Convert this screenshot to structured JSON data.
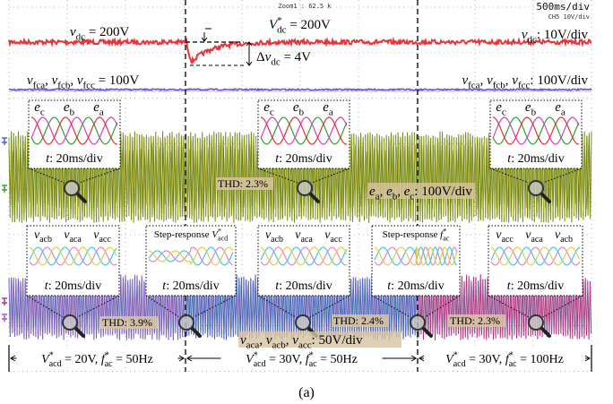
{
  "scope": {
    "zoom": "Zoom1 : 62.5 k",
    "timebase": "500ms/div",
    "channel": "CH5  10V/div"
  },
  "annotations": {
    "vdc": [
      {
        "v": "v",
        "sub": "dc"
      },
      {
        "t": " = 200V"
      }
    ],
    "vdc_ref": [
      {
        "v": "V",
        "sup": "*",
        "sub": "dc"
      },
      {
        "t": " = 200V"
      }
    ],
    "delta_vdc": [
      {
        "t": "Δ"
      },
      {
        "v": "v",
        "sub": "dc"
      },
      {
        "t": " = 4V"
      }
    ],
    "vdc_scale": [
      {
        "v": "v",
        "sub": "dc"
      },
      {
        "t": ": 10V/div"
      }
    ],
    "vfc": [
      {
        "v": "v",
        "sub": "fca"
      },
      {
        "t": ", "
      },
      {
        "v": "v",
        "sub": "fcb"
      },
      {
        "t": ", "
      },
      {
        "v": "v",
        "sub": "fcc"
      },
      {
        "t": " = 100V"
      }
    ],
    "vfc_scale": [
      {
        "v": "v",
        "sub": "fca"
      },
      {
        "t": ", "
      },
      {
        "v": "v",
        "sub": "fcb"
      },
      {
        "t": ", "
      },
      {
        "v": "v",
        "sub": "fcc"
      },
      {
        "t": ": 100V/div"
      }
    ],
    "e_scale": [
      {
        "v": "e",
        "sub": "a"
      },
      {
        "t": ", "
      },
      {
        "v": "e",
        "sub": "b"
      },
      {
        "t": ", "
      },
      {
        "v": "e",
        "sub": "c"
      },
      {
        "t": ": 100V/div"
      }
    ],
    "vac_scale": [
      {
        "v": "v",
        "sub": "aca"
      },
      {
        "t": ", "
      },
      {
        "v": "v",
        "sub": "acb"
      },
      {
        "t": ", "
      },
      {
        "v": "v",
        "sub": "acc"
      },
      {
        "t": ": 50V/div"
      }
    ]
  },
  "insets": [
    {
      "labels": [
        [
          {
            "v": "e",
            "sub": "c"
          }
        ],
        [
          {
            "v": "e",
            "sub": "b"
          }
        ],
        [
          {
            "v": "e",
            "sub": "a"
          }
        ]
      ],
      "time": [
        {
          "v": "t"
        },
        {
          "t": ": 20ms/div"
        }
      ]
    },
    {
      "labels": [
        [
          {
            "v": "e",
            "sub": "c"
          }
        ],
        [
          {
            "v": "e",
            "sub": "b"
          }
        ],
        [
          {
            "v": "e",
            "sub": "a"
          }
        ]
      ],
      "time": [
        {
          "v": "t"
        },
        {
          "t": ": 20ms/div"
        }
      ]
    },
    {
      "labels": [
        [
          {
            "v": "e",
            "sub": "c"
          }
        ],
        [
          {
            "v": "e",
            "sub": "b"
          }
        ],
        [
          {
            "v": "e",
            "sub": "a"
          }
        ]
      ],
      "time": [
        {
          "v": "t"
        },
        {
          "t": ": 20ms/div"
        }
      ]
    },
    {
      "labels": [
        [
          {
            "v": "v",
            "sub": "acb"
          }
        ],
        [
          {
            "v": "v",
            "sub": "aca"
          }
        ],
        [
          {
            "v": "v",
            "sub": "acc"
          }
        ]
      ],
      "time": [
        {
          "v": "t"
        },
        {
          "t": ": 20ms/div"
        }
      ]
    },
    {
      "title": [
        {
          "t": "Step-response "
        },
        {
          "v": "V",
          "sup": "*",
          "sub": "acd"
        }
      ],
      "time": [
        {
          "v": "t"
        },
        {
          "t": ": 20ms/div"
        }
      ]
    },
    {
      "labels": [
        [
          {
            "v": "v",
            "sub": "acb"
          }
        ],
        [
          {
            "v": "v",
            "sub": "aca"
          }
        ],
        [
          {
            "v": "v",
            "sub": "acc"
          }
        ]
      ],
      "time": [
        {
          "v": "t"
        },
        {
          "t": ": 20ms/div"
        }
      ]
    },
    {
      "title": [
        {
          "t": "Step-response "
        },
        {
          "v": "f",
          "sup": "*",
          "sub": "ac"
        }
      ],
      "time": [
        {
          "v": "t"
        },
        {
          "t": ": 20ms/div"
        }
      ]
    },
    {
      "labels": [
        [
          {
            "v": "v",
            "sub": "acc"
          }
        ],
        [
          {
            "v": "v",
            "sub": "aca"
          }
        ],
        [
          {
            "v": "v",
            "sub": "acb"
          }
        ]
      ],
      "time": [
        {
          "v": "t"
        },
        {
          "t": ": 20ms/div"
        }
      ]
    }
  ],
  "thd": [
    "THD: 2.3%",
    "THD: 3.9%",
    "THD: 2.4%",
    "THD: 2.3%"
  ],
  "intervals": [
    [
      {
        "v": "V",
        "sup": "*",
        "sub": "acd"
      },
      {
        "t": " = 20V, "
      },
      {
        "v": "f",
        "sup": "*",
        "sub": "ac"
      },
      {
        "t": " = 50Hz"
      }
    ],
    [
      {
        "v": "V",
        "sup": "*",
        "sub": "acd"
      },
      {
        "t": " = 30V, "
      },
      {
        "v": "f",
        "sup": "*",
        "sub": "ac"
      },
      {
        "t": " = 50Hz"
      }
    ],
    [
      {
        "v": "V",
        "sup": "*",
        "sub": "acd"
      },
      {
        "t": " = 30V, "
      },
      {
        "v": "f",
        "sup": "*",
        "sub": "ac"
      },
      {
        "t": " = 100Hz"
      }
    ]
  ],
  "caption": "(a)"
}
